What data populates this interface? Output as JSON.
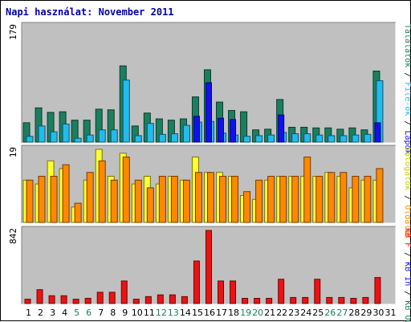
{
  "chart_data": {
    "type": "bar",
    "title": "Napi használat: November 2011",
    "categories": [
      "1",
      "2",
      "3",
      "4",
      "5",
      "6",
      "7",
      "8",
      "9",
      "10",
      "11",
      "12",
      "13",
      "14",
      "15",
      "16",
      "17",
      "18",
      "19",
      "20",
      "21",
      "22",
      "23",
      "24",
      "25",
      "26",
      "27",
      "28",
      "29",
      "30",
      "31"
    ],
    "weekend_days": [
      "5",
      "6",
      "12",
      "13",
      "19",
      "20",
      "26",
      "27"
    ],
    "colors": {
      "title": "#0000aa",
      "hits": "#1b7f5f",
      "files": "#22bbee",
      "pages": "#1111ee",
      "visits": "#ffff33",
      "sites": "#ff8800",
      "kb": "#ee1111",
      "weekday_label": "#000000",
      "weekend_label": "#1b7f5f"
    },
    "panels": [
      {
        "id": "usage",
        "max_label": "179",
        "ymax": 179,
        "legend": [
          {
            "text": "Találatok",
            "color": "#1b7f5f"
          },
          {
            "text": " / ",
            "color": "#000000"
          },
          {
            "text": "File-ok",
            "color": "#22bbee"
          },
          {
            "text": " / ",
            "color": "#000000"
          },
          {
            "text": "Lapok",
            "color": "#1111ee"
          }
        ],
        "series": [
          {
            "name": "Találatok",
            "color": "#1b7f5f",
            "values": [
              30,
              53,
              46,
              47,
              34,
              34,
              51,
              50,
              118,
              25,
              45,
              36,
              34,
              36,
              70,
              112,
              62,
              49,
              47,
              19,
              20,
              66,
              23,
              23,
              22,
              22,
              20,
              22,
              19,
              110,
              null
            ]
          },
          {
            "name": "File-ok",
            "color": "#22bbee",
            "values": [
              9,
              25,
              16,
              28,
              6,
              11,
              19,
              19,
              96,
              10,
              29,
              12,
              13,
              26,
              31,
              32,
              14,
              11,
              9,
              10,
              11,
              15,
              13,
              13,
              11,
              10,
              10,
              11,
              12,
              95,
              null
            ]
          },
          {
            "name": "Lapok",
            "color": "#1111ee",
            "values": [
              0,
              0,
              0,
              0,
              0,
              0,
              0,
              0,
              0,
              0,
              0,
              0,
              0,
              0,
              40,
              92,
              37,
              35,
              0,
              0,
              0,
              42,
              0,
              0,
              0,
              0,
              0,
              0,
              0,
              30,
              null
            ]
          }
        ]
      },
      {
        "id": "visits",
        "max_label": "19",
        "ymax": 19,
        "legend": [
          {
            "text": "Látogatók",
            "color": "#cccc00"
          },
          {
            "text": " / ",
            "color": "#000000"
          },
          {
            "text": "Oldalak",
            "color": "#ff8800"
          }
        ],
        "series": [
          {
            "name": "Látogatók",
            "color": "#ffff33",
            "values": [
              11,
              10,
              16,
              14,
              4,
              11,
              19,
              12,
              18,
              10,
              12,
              10,
              12,
              11,
              17,
              13,
              13,
              12,
              7,
              6,
              11,
              12,
              12,
              12,
              12,
              13,
              12,
              9,
              11,
              11,
              null
            ]
          },
          {
            "name": "Oldalak",
            "color": "#ff8800",
            "values": [
              11,
              12,
              12,
              15,
              5,
              13,
              16,
              11,
              17,
              11,
              9,
              12,
              12,
              11,
              13,
              13,
              12,
              12,
              8,
              11,
              12,
              12,
              12,
              17,
              12,
              13,
              13,
              12,
              12,
              14,
              null
            ]
          }
        ]
      },
      {
        "id": "kb",
        "max_label": "842",
        "ymax": 842,
        "legend": [
          {
            "text": "KB F",
            "color": "#ee1111"
          },
          {
            "text": " / ",
            "color": "#000000"
          },
          {
            "text": "KB In",
            "color": "#1111ee"
          },
          {
            "text": " / ",
            "color": "#000000"
          },
          {
            "text": "KB Out",
            "color": "#1b7f5f"
          }
        ],
        "series": [
          {
            "name": "KB F",
            "color": "#ee1111",
            "values": [
              50,
              160,
              90,
              90,
              50,
              60,
              130,
              130,
              260,
              50,
              80,
              100,
              100,
              80,
              490,
              842,
              260,
              260,
              60,
              60,
              60,
              280,
              70,
              70,
              280,
              70,
              70,
              60,
              70,
              300,
              null
            ]
          }
        ]
      }
    ]
  }
}
